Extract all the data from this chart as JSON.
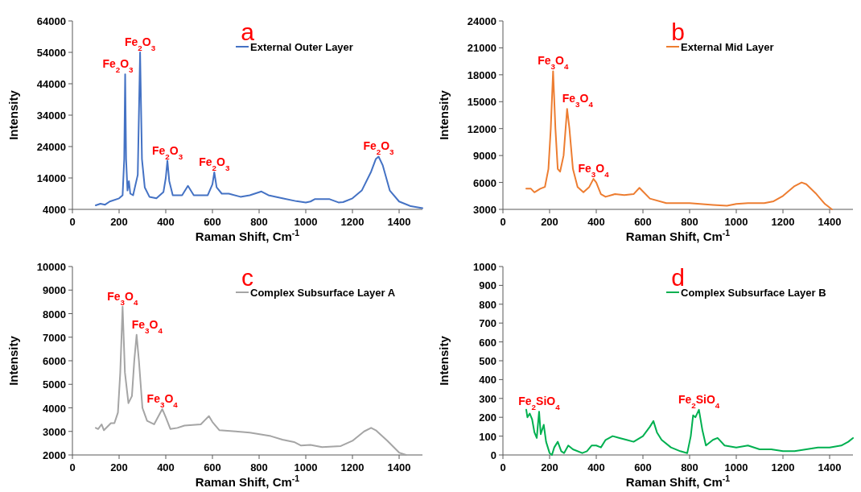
{
  "chart_data": [
    {
      "type": "line",
      "title": "a",
      "xlabel": "Raman Shift, Cm$^{-1}$",
      "ylabel": "Intensity",
      "xlim": [
        0,
        1500
      ],
      "xticks": [
        0,
        200,
        400,
        600,
        800,
        1000,
        1200,
        1400
      ],
      "ylim": [
        4000,
        64000
      ],
      "yticks": [
        4000,
        14000,
        24000,
        34000,
        44000,
        54000,
        64000
      ],
      "legend": "top right",
      "series": [
        {
          "name": "External Outer Layer",
          "color": "#4472c4",
          "x": [
            100,
            120,
            140,
            160,
            200,
            215,
            222,
            226,
            230,
            236,
            242,
            248,
            260,
            280,
            290,
            298,
            310,
            330,
            360,
            390,
            400,
            407,
            415,
            430,
            470,
            495,
            520,
            580,
            600,
            608,
            618,
            640,
            670,
            720,
            760,
            810,
            840,
            900,
            960,
            1000,
            1020,
            1040,
            1100,
            1140,
            1160,
            1200,
            1240,
            1280,
            1300,
            1312,
            1330,
            1360,
            1400,
            1450,
            1500
          ],
          "values": [
            5300,
            5800,
            5500,
            6500,
            7500,
            8500,
            20000,
            47000,
            20000,
            10000,
            13000,
            9000,
            8500,
            15000,
            54000,
            20000,
            11000,
            8000,
            7500,
            9500,
            14000,
            19500,
            13000,
            8500,
            8500,
            11500,
            8500,
            8500,
            12000,
            15800,
            11000,
            9000,
            9000,
            8000,
            8500,
            9700,
            8500,
            7500,
            6600,
            6200,
            6500,
            7300,
            7300,
            6200,
            6300,
            7500,
            10000,
            16000,
            20000,
            20800,
            18000,
            10000,
            6500,
            5000,
            4400
          ]
        }
      ],
      "annotations": [
        {
          "text": "Fe$_{2}$O$_{3}$",
          "x": 226,
          "y": 47000
        },
        {
          "text": "Fe$_{2}$O$_{3}$",
          "x": 290,
          "y": 54000
        },
        {
          "text": "Fe$_{2}$O$_{3}$",
          "x": 407,
          "y": 19500
        },
        {
          "text": "Fe$_{2}$O$_{3}$",
          "x": 608,
          "y": 15800
        },
        {
          "text": "Fe$_{2}$O$_{3}$",
          "x": 1312,
          "y": 20800
        }
      ]
    },
    {
      "type": "line",
      "title": "b",
      "xlabel": "Raman Shift, Cm$^{-1}$",
      "ylabel": "Intensity",
      "xlim": [
        0,
        1500
      ],
      "xticks": [
        0,
        200,
        400,
        600,
        800,
        1000,
        1200,
        1400
      ],
      "ylim": [
        3000,
        24000
      ],
      "yticks": [
        3000,
        6000,
        9000,
        12000,
        15000,
        18000,
        21000,
        24000
      ],
      "legend": "top right",
      "series": [
        {
          "name": "External Mid Layer",
          "color": "#ed7d31",
          "x": [
            100,
            120,
            135,
            160,
            180,
            195,
            205,
            215,
            225,
            235,
            245,
            260,
            275,
            285,
            300,
            320,
            345,
            370,
            388,
            400,
            420,
            440,
            480,
            520,
            560,
            585,
            600,
            630,
            700,
            800,
            900,
            960,
            1000,
            1050,
            1120,
            1160,
            1200,
            1250,
            1280,
            1300,
            1340,
            1380,
            1410
          ],
          "values": [
            5300,
            5300,
            4900,
            5300,
            5500,
            7500,
            12000,
            18400,
            12000,
            7500,
            7200,
            9000,
            14200,
            12000,
            7500,
            5500,
            4900,
            5500,
            6400,
            6000,
            4700,
            4400,
            4700,
            4600,
            4700,
            5400,
            5000,
            4200,
            3700,
            3700,
            3500,
            3400,
            3600,
            3700,
            3700,
            3900,
            4500,
            5600,
            6000,
            5800,
            4800,
            3600,
            3000
          ]
        }
      ],
      "annotations": [
        {
          "text": "Fe$_{3}$O$_{4}$",
          "x": 215,
          "y": 18400
        },
        {
          "text": "Fe$_{3}$O$_{4}$",
          "x": 275,
          "y": 14200
        },
        {
          "text": "Fe$_{3}$O$_{4}$",
          "x": 388,
          "y": 6400
        }
      ]
    },
    {
      "type": "line",
      "title": "c",
      "xlabel": "Raman Shift, Cm$^{-1}$",
      "ylabel": "Intensity",
      "xlim": [
        0,
        1500
      ],
      "xticks": [
        0,
        200,
        400,
        600,
        800,
        1000,
        1200,
        1400
      ],
      "ylim": [
        2000,
        10000
      ],
      "yticks": [
        2000,
        3000,
        4000,
        5000,
        6000,
        7000,
        8000,
        9000,
        10000
      ],
      "legend": "top right",
      "series": [
        {
          "name": "Complex Subsurface Layer A",
          "color": "#a5a5a5",
          "x": [
            100,
            110,
            125,
            135,
            165,
            180,
            195,
            205,
            215,
            225,
            240,
            255,
            265,
            275,
            285,
            300,
            320,
            350,
            385,
            400,
            420,
            450,
            480,
            550,
            585,
            600,
            630,
            700,
            760,
            850,
            900,
            950,
            980,
            1020,
            1070,
            1150,
            1200,
            1250,
            1280,
            1300,
            1350,
            1400,
            1430
          ],
          "values": [
            3150,
            3100,
            3300,
            3050,
            3350,
            3350,
            3800,
            5500,
            8300,
            5500,
            4200,
            4500,
            6000,
            7100,
            6000,
            4000,
            3450,
            3300,
            3950,
            3600,
            3100,
            3150,
            3250,
            3300,
            3650,
            3400,
            3050,
            3000,
            2950,
            2800,
            2650,
            2550,
            2400,
            2430,
            2330,
            2380,
            2600,
            3000,
            3150,
            3050,
            2600,
            2100,
            2000
          ]
        }
      ],
      "annotations": [
        {
          "text": "Fe$_{3}$O$_{4}$",
          "x": 215,
          "y": 8300
        },
        {
          "text": "Fe$_{3}$O$_{4}$",
          "x": 275,
          "y": 7100
        },
        {
          "text": "Fe$_{3}$O$_{4}$",
          "x": 385,
          "y": 3950
        }
      ]
    },
    {
      "type": "line",
      "title": "d",
      "xlabel": "Raman Shift, Cm$^{-1}$",
      "ylabel": "Intensity",
      "xlim": [
        0,
        1500
      ],
      "xticks": [
        0,
        200,
        400,
        600,
        800,
        1000,
        1200,
        1400
      ],
      "ylim": [
        0,
        1000
      ],
      "yticks": [
        0,
        100,
        200,
        300,
        400,
        500,
        600,
        700,
        800,
        900,
        1000
      ],
      "legend": "top right",
      "series": [
        {
          "name": "Complex Subsurface Layer B",
          "color": "#00b050",
          "x": [
            100,
            105,
            115,
            125,
            135,
            145,
            155,
            162,
            175,
            185,
            200,
            210,
            220,
            235,
            250,
            262,
            280,
            300,
            340,
            360,
            380,
            400,
            420,
            440,
            470,
            500,
            530,
            560,
            600,
            630,
            645,
            660,
            680,
            720,
            760,
            790,
            805,
            815,
            825,
            840,
            855,
            870,
            900,
            920,
            950,
            1000,
            1050,
            1100,
            1150,
            1200,
            1250,
            1300,
            1350,
            1400,
            1450,
            1480,
            1500
          ],
          "values": [
            240,
            200,
            220,
            190,
            120,
            90,
            230,
            110,
            160,
            70,
            10,
            0,
            40,
            70,
            20,
            10,
            50,
            30,
            10,
            20,
            50,
            50,
            40,
            80,
            100,
            90,
            80,
            70,
            100,
            150,
            180,
            120,
            80,
            40,
            20,
            10,
            100,
            210,
            200,
            240,
            130,
            50,
            80,
            90,
            50,
            40,
            50,
            30,
            30,
            20,
            20,
            30,
            40,
            40,
            50,
            70,
            90
          ]
        }
      ],
      "annotations": [
        {
          "text": "Fe$_{2}$SiO$_{4}$",
          "x": 155,
          "y": 230
        },
        {
          "text": "Fe$_{2}$SiO$_{4}$",
          "x": 840,
          "y": 240
        }
      ]
    }
  ]
}
